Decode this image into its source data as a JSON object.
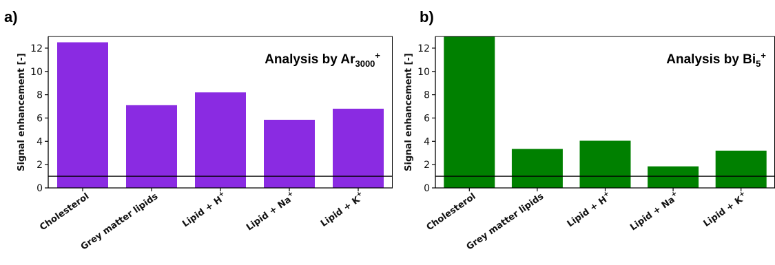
{
  "panels": [
    {
      "label": "a)",
      "annotation": {
        "text": "Analysis by Ar",
        "sub": "3000",
        "sup": "+"
      },
      "color": "#8a2be2"
    },
    {
      "label": "b)",
      "annotation": {
        "text": "Analysis by Bi",
        "sub": "5",
        "sup": "+"
      },
      "color": "#008000"
    }
  ],
  "chart_data": [
    {
      "type": "bar",
      "categories": [
        {
          "text": "Cholesterol",
          "sup": ""
        },
        {
          "text": "Grey matter lipids",
          "sup": ""
        },
        {
          "text": "Lipid + H",
          "sup": "+"
        },
        {
          "text": "Lipid + Na",
          "sup": "+"
        },
        {
          "text": "Lipid + K",
          "sup": "+"
        }
      ],
      "values": [
        12.5,
        7.1,
        8.2,
        5.85,
        6.8
      ],
      "ylabel": "Signal enhancement [-]",
      "ylim": [
        0,
        13
      ],
      "yticks": [
        0,
        2,
        4,
        6,
        8,
        10,
        12
      ],
      "reference_line": 1,
      "color": "#8a2be2"
    },
    {
      "type": "bar",
      "categories": [
        {
          "text": "Cholesterol",
          "sup": ""
        },
        {
          "text": "Grey matter lipids",
          "sup": ""
        },
        {
          "text": "Lipid + H",
          "sup": "+"
        },
        {
          "text": "Lipid + Na",
          "sup": "+"
        },
        {
          "text": "Lipid + K",
          "sup": "+"
        }
      ],
      "values": [
        13.0,
        3.35,
        4.05,
        1.85,
        3.2
      ],
      "ylabel": "Signal enhancement [-]",
      "ylim": [
        0,
        13
      ],
      "yticks": [
        0,
        2,
        4,
        6,
        8,
        10,
        12
      ],
      "reference_line": 1,
      "color": "#008000"
    }
  ]
}
